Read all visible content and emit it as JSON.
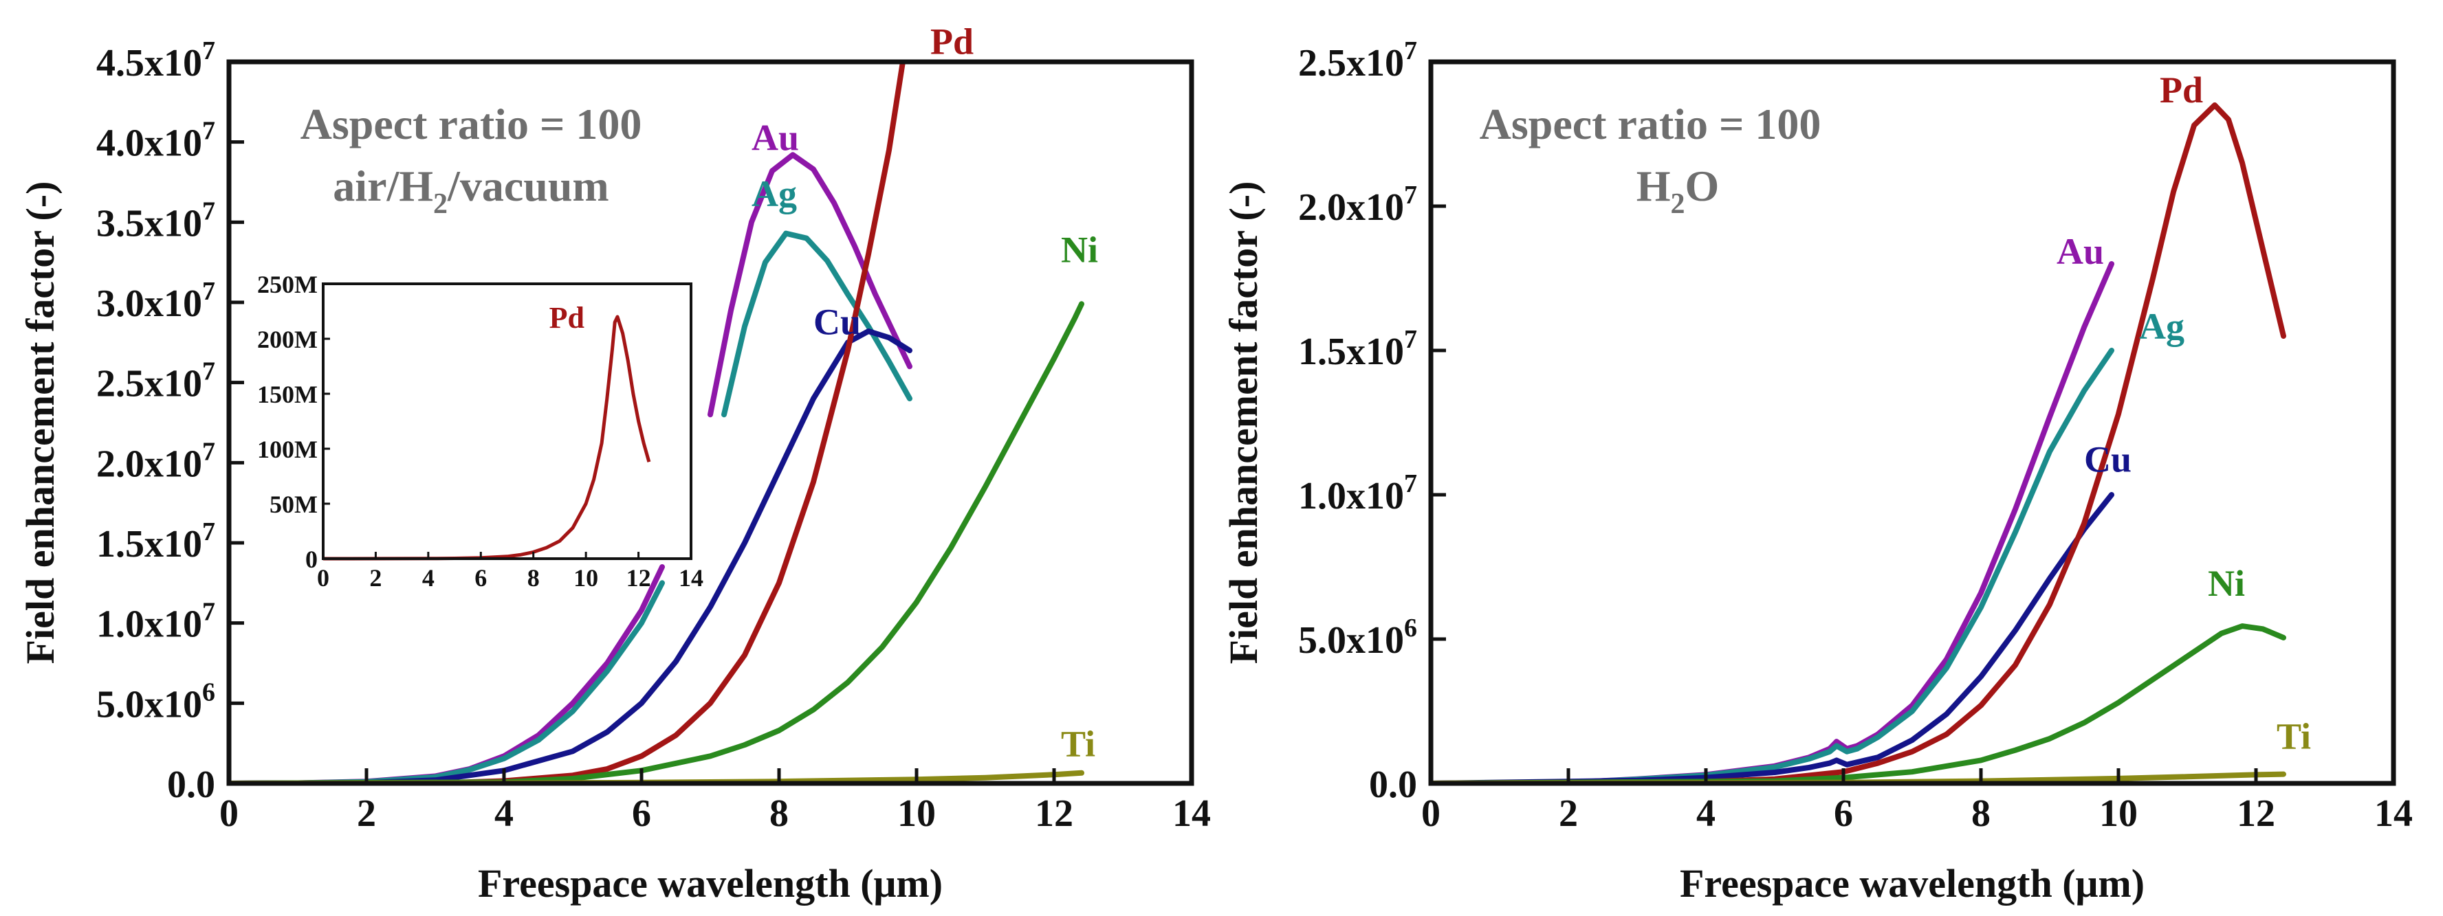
{
  "colors": {
    "Au": "#8e17a8",
    "Ag": "#1b8c8c",
    "Cu": "#14148a",
    "Pd": "#a31515",
    "Ni": "#2a8a1e",
    "Ti": "#8a8a16"
  },
  "chart_data": [
    {
      "type": "line",
      "title": "",
      "xlabel": "Freespace wavelength (μm)",
      "ylabel": "Field enhancement factor (-)",
      "xlim": [
        0,
        14
      ],
      "ylim": [
        0,
        45000000
      ],
      "xticks": [
        "0",
        "2",
        "4",
        "6",
        "8",
        "10",
        "12",
        "14"
      ],
      "yticks": [
        "0.0",
        "5.0x10",
        "1.0x10",
        "1.5x10",
        "2.0x10",
        "2.5x10",
        "3.0x10",
        "3.5x10",
        "4.0x10",
        "4.5x10"
      ],
      "ytick_exponents": [
        "",
        "6",
        "7",
        "7",
        "7",
        "7",
        "7",
        "7",
        "7",
        "7"
      ],
      "annotation_lines": [
        {
          "prefix": "Aspect ratio = 100",
          "sub": "",
          "suffix": ""
        },
        {
          "prefix": "air/H",
          "sub": "2",
          "suffix": "/vacuum"
        }
      ],
      "series": [
        {
          "name": "Au",
          "color_key": "Au",
          "label_at": [
            7.6,
            39500000
          ],
          "x": [
            0,
            1,
            2,
            3,
            3.5,
            4,
            4.5,
            5,
            5.5,
            6,
            6.3
          ],
          "y": [
            0,
            20000,
            120000,
            450000,
            900000,
            1700000,
            3000000,
            5000000,
            7500000,
            10800000,
            13500000
          ]
        },
        {
          "name": "Au",
          "color_key": "Au",
          "label_at": null,
          "x": [
            7.0,
            7.3,
            7.6,
            7.9,
            8.2,
            8.5,
            8.8,
            9.1,
            9.4,
            9.7,
            9.9
          ],
          "y": [
            23000000,
            29500000,
            35000000,
            38200000,
            39200000,
            38300000,
            36200000,
            33500000,
            30500000,
            27800000,
            26000000
          ]
        },
        {
          "name": "Ag",
          "color_key": "Ag",
          "label_at": [
            7.6,
            36000000
          ],
          "x": [
            0,
            1,
            2,
            3,
            3.5,
            4,
            4.5,
            5,
            5.5,
            6,
            6.3
          ],
          "y": [
            0,
            18000,
            100000,
            400000,
            850000,
            1550000,
            2700000,
            4500000,
            7000000,
            10000000,
            12500000
          ]
        },
        {
          "name": "Ag",
          "color_key": "Ag",
          "label_at": null,
          "x": [
            7.2,
            7.5,
            7.8,
            8.1,
            8.4,
            8.7,
            9.0,
            9.3,
            9.6,
            9.9
          ],
          "y": [
            23000000,
            28500000,
            32500000,
            34300000,
            34000000,
            32600000,
            30500000,
            28500000,
            26300000,
            24000000
          ]
        },
        {
          "name": "Cu",
          "color_key": "Cu",
          "label_at": [
            8.5,
            28000000
          ],
          "x": [
            0,
            2,
            3,
            4,
            5,
            5.5,
            6,
            6.5,
            7,
            7.5,
            8,
            8.5,
            9,
            9.3,
            9.6,
            9.9
          ],
          "y": [
            0,
            40000,
            200000,
            800000,
            2000000,
            3200000,
            5000000,
            7600000,
            11000000,
            15000000,
            19500000,
            24000000,
            27500000,
            28200000,
            27800000,
            27000000
          ]
        },
        {
          "name": "Pd",
          "color_key": "Pd",
          "label_at": [
            10.2,
            45500000
          ],
          "x": [
            0,
            3,
            4,
            5,
            5.5,
            6,
            6.5,
            7,
            7.5,
            8,
            8.5,
            9,
            9.3,
            9.6,
            9.8
          ],
          "y": [
            0,
            20000,
            150000,
            500000,
            900000,
            1700000,
            3000000,
            5000000,
            8000000,
            12500000,
            18800000,
            27000000,
            33000000,
            39500000,
            45000000
          ]
        },
        {
          "name": "Ni",
          "color_key": "Ni",
          "label_at": [
            12.1,
            32500000
          ],
          "x": [
            0,
            4,
            5,
            6,
            7,
            7.5,
            8,
            8.5,
            9,
            9.5,
            10,
            10.5,
            11,
            11.5,
            12,
            12.3,
            12.4
          ],
          "y": [
            0,
            80000,
            300000,
            800000,
            1700000,
            2400000,
            3300000,
            4600000,
            6300000,
            8500000,
            11300000,
            14700000,
            18500000,
            22500000,
            26500000,
            29000000,
            29900000
          ]
        },
        {
          "name": "Ti",
          "color_key": "Ti",
          "label_at": [
            12.1,
            1700000
          ],
          "x": [
            0,
            4,
            6,
            8,
            10,
            11,
            12,
            12.4
          ],
          "y": [
            0,
            20000,
            50000,
            120000,
            250000,
            350000,
            550000,
            650000
          ]
        }
      ]
    },
    {
      "type": "line",
      "title": "",
      "xlabel": "Freespace wavelength (μm)",
      "ylabel": "Field enhancement factor (-)",
      "xlim": [
        0,
        14
      ],
      "ylim": [
        0,
        25000000
      ],
      "xticks": [
        "0",
        "2",
        "4",
        "6",
        "8",
        "10",
        "12",
        "14"
      ],
      "yticks": [
        "0.0",
        "5.0x10",
        "1.0x10",
        "1.5x10",
        "2.0x10",
        "2.5x10"
      ],
      "ytick_exponents": [
        "",
        "6",
        "7",
        "7",
        "7",
        "7"
      ],
      "annotation_lines": [
        {
          "prefix": "Aspect ratio = 100",
          "sub": "",
          "suffix": ""
        },
        {
          "prefix": "H",
          "sub": "2",
          "suffix": "O"
        }
      ],
      "series": [
        {
          "name": "Au",
          "color_key": "Au",
          "label_at": [
            9.1,
            18000000
          ],
          "x": [
            0,
            2,
            3,
            4,
            5,
            5.5,
            5.8,
            5.9,
            6.05,
            6.2,
            6.5,
            7,
            7.5,
            8,
            8.5,
            9,
            9.5,
            9.9
          ],
          "y": [
            0,
            30000,
            150000,
            300000,
            600000,
            900000,
            1200000,
            1450000,
            1200000,
            1300000,
            1700000,
            2700000,
            4300000,
            6600000,
            9500000,
            12700000,
            15800000,
            18000000
          ]
        },
        {
          "name": "Ag",
          "color_key": "Ag",
          "label_at": [
            10.3,
            15400000
          ],
          "x": [
            0,
            2,
            3,
            4,
            5,
            5.5,
            5.8,
            5.9,
            6.05,
            6.2,
            6.5,
            7,
            7.5,
            8,
            8.5,
            9,
            9.5,
            9.9
          ],
          "y": [
            0,
            30000,
            140000,
            280000,
            560000,
            850000,
            1100000,
            1300000,
            1100000,
            1200000,
            1600000,
            2500000,
            4000000,
            6100000,
            8700000,
            11500000,
            13600000,
            15000000
          ]
        },
        {
          "name": "Cu",
          "color_key": "Cu",
          "label_at": [
            9.5,
            10800000
          ],
          "x": [
            0,
            3,
            4,
            5,
            5.5,
            5.8,
            5.9,
            6.05,
            6.5,
            7,
            7.5,
            8,
            8.5,
            9,
            9.5,
            9.9
          ],
          "y": [
            0,
            100000,
            200000,
            380000,
            550000,
            700000,
            800000,
            650000,
            900000,
            1500000,
            2400000,
            3700000,
            5300000,
            7100000,
            8800000,
            10000000
          ]
        },
        {
          "name": "Pd",
          "color_key": "Pd",
          "label_at": [
            10.6,
            23600000
          ],
          "x": [
            0,
            4,
            5,
            6,
            6.5,
            7,
            7.5,
            8,
            8.5,
            9,
            9.5,
            10,
            10.5,
            10.8,
            11.1,
            11.4,
            11.6,
            11.8,
            12.0,
            12.2,
            12.4
          ],
          "y": [
            0,
            60000,
            150000,
            400000,
            700000,
            1100000,
            1700000,
            2700000,
            4100000,
            6200000,
            9000000,
            12800000,
            17500000,
            20500000,
            22800000,
            23500000,
            23000000,
            21500000,
            19500000,
            17500000,
            15500000
          ]
        },
        {
          "name": "Ni",
          "color_key": "Ni",
          "label_at": [
            11.3,
            6500000
          ],
          "x": [
            0,
            5,
            6,
            7,
            8,
            8.5,
            9,
            9.5,
            10,
            10.5,
            11,
            11.5,
            11.8,
            12.1,
            12.4
          ],
          "y": [
            0,
            80000,
            200000,
            400000,
            800000,
            1150000,
            1550000,
            2100000,
            2800000,
            3600000,
            4400000,
            5200000,
            5450000,
            5350000,
            5050000
          ]
        },
        {
          "name": "Ti",
          "color_key": "Ti",
          "label_at": [
            12.3,
            1200000
          ],
          "x": [
            0,
            6,
            8,
            10,
            11,
            12,
            12.4
          ],
          "y": [
            0,
            30000,
            80000,
            170000,
            230000,
            300000,
            320000
          ]
        }
      ]
    }
  ],
  "inset": {
    "type": "line",
    "xlim": [
      0,
      14
    ],
    "ylim": [
      0,
      250
    ],
    "xticks": [
      "0",
      "2",
      "4",
      "6",
      "8",
      "10",
      "12",
      "14"
    ],
    "yticks": [
      "0",
      "50M",
      "100M",
      "150M",
      "200M",
      "250M"
    ],
    "series": [
      {
        "name": "Pd",
        "color_key": "Pd",
        "label_at": [
          8.6,
          210
        ],
        "x": [
          0,
          4,
          5,
          6,
          7,
          7.5,
          8,
          8.5,
          9,
          9.5,
          10,
          10.3,
          10.6,
          10.8,
          11,
          11.1,
          11.2,
          11.4,
          11.6,
          11.8,
          12,
          12.2,
          12.4
        ],
        "y": [
          0,
          0.1,
          0.3,
          0.8,
          2,
          3.5,
          6,
          10,
          16,
          28,
          50,
          72,
          105,
          145,
          190,
          215,
          220,
          205,
          180,
          150,
          125,
          105,
          88
        ]
      }
    ]
  }
}
